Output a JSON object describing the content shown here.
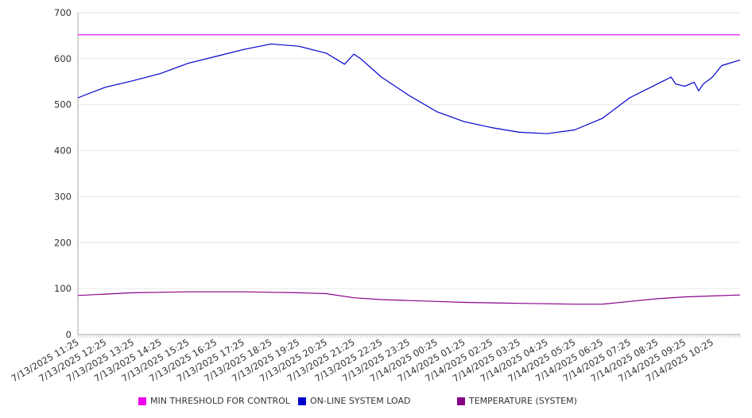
{
  "chart_data": {
    "type": "line",
    "title": "",
    "xlabel": "",
    "ylabel": "",
    "ylim": [
      0,
      700
    ],
    "y_ticks": [
      0,
      100,
      200,
      300,
      400,
      500,
      600,
      700
    ],
    "x_start": "7/13/2025 11:25",
    "x_end": "7/14/2025 11:25",
    "x_tick_labels": [
      "7/13/2025 11:25",
      "7/13/2025 12:25",
      "7/13/2025 13:25",
      "7/13/2025 14:25",
      "7/13/2025 15:25",
      "7/13/2025 16:25",
      "7/13/2025 17:25",
      "7/13/2025 18:25",
      "7/13/2025 19:25",
      "7/13/2025 20:25",
      "7/13/2025 21:25",
      "7/13/2025 22:25",
      "7/13/2025 23:25",
      "7/14/2025 00:25",
      "7/14/2025 01:25",
      "7/14/2025 02:25",
      "7/14/2025 03:25",
      "7/14/2025 04:25",
      "7/14/2025 05:25",
      "7/14/2025 06:25",
      "7/14/2025 07:25",
      "7/14/2025 08:25",
      "7/14/2025 09:25",
      "7/14/2025 10:25"
    ],
    "grid": true,
    "legend_position": "bottom",
    "series": [
      {
        "name": "MIN THRESHOLD FOR CONTROL",
        "color": "#ee00ee",
        "x": [
          "7/13/2025 11:25",
          "7/14/2025 11:25"
        ],
        "values": [
          652,
          652
        ]
      },
      {
        "name": "ON-LINE SYSTEM LOAD",
        "color": "#0000cc",
        "x": [
          "7/13/2025 11:25",
          "7/13/2025 12:25",
          "7/13/2025 13:25",
          "7/13/2025 14:25",
          "7/13/2025 15:25",
          "7/13/2025 16:25",
          "7/13/2025 17:25",
          "7/13/2025 18:25",
          "7/13/2025 19:25",
          "7/13/2025 20:25",
          "7/13/2025 21:05",
          "7/13/2025 21:25",
          "7/13/2025 21:40",
          "7/13/2025 22:25",
          "7/13/2025 23:25",
          "7/14/2025 00:25",
          "7/14/2025 01:25",
          "7/14/2025 02:25",
          "7/14/2025 03:25",
          "7/14/2025 04:25",
          "7/14/2025 05:25",
          "7/14/2025 06:25",
          "7/14/2025 07:25",
          "7/14/2025 08:25",
          "7/14/2025 08:55",
          "7/14/2025 09:05",
          "7/14/2025 09:25",
          "7/14/2025 09:45",
          "7/14/2025 09:55",
          "7/14/2025 10:05",
          "7/14/2025 10:25",
          "7/14/2025 10:45",
          "7/14/2025 11:25"
        ],
        "values": [
          515,
          538,
          552,
          568,
          590,
          605,
          620,
          632,
          627,
          612,
          588,
          610,
          600,
          560,
          520,
          485,
          463,
          450,
          440,
          437,
          445,
          470,
          515,
          545,
          560,
          545,
          540,
          549,
          530,
          545,
          560,
          585,
          597
        ]
      },
      {
        "name": "TEMPERATURE (SYSTEM)",
        "color": "#880088",
        "x": [
          "7/13/2025 11:25",
          "7/13/2025 12:25",
          "7/13/2025 13:25",
          "7/13/2025 14:25",
          "7/13/2025 15:25",
          "7/13/2025 16:25",
          "7/13/2025 17:25",
          "7/13/2025 18:25",
          "7/13/2025 19:25",
          "7/13/2025 20:25",
          "7/13/2025 21:25",
          "7/13/2025 22:25",
          "7/13/2025 23:25",
          "7/14/2025 00:25",
          "7/14/2025 01:25",
          "7/14/2025 02:25",
          "7/14/2025 03:25",
          "7/14/2025 04:25",
          "7/14/2025 05:25",
          "7/14/2025 06:25",
          "7/14/2025 07:25",
          "7/14/2025 08:25",
          "7/14/2025 09:25",
          "7/14/2025 10:25",
          "7/14/2025 11:25"
        ],
        "values": [
          85,
          88,
          91,
          92,
          93,
          93,
          93,
          92,
          91,
          89,
          80,
          76,
          74,
          72,
          70,
          69,
          68,
          67,
          66,
          66,
          72,
          78,
          82,
          84,
          86
        ]
      }
    ]
  }
}
